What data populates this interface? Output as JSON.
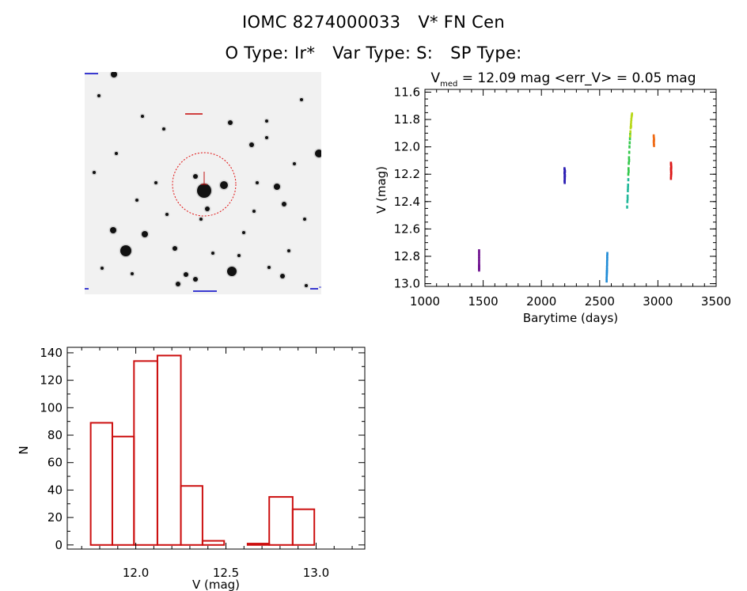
{
  "header": {
    "object_id": "IOMC 8274000033",
    "object_name": "V* FN Cen",
    "o_type": "O Type: Ir*",
    "var_type": "Var Type: S:",
    "sp_type": "SP Type:"
  },
  "chart_data": [
    {
      "type": "scatter",
      "title": "V_med = 12.09 mag <err_V> = 0.05 mag",
      "title_parts": {
        "v": "V",
        "sub": "med",
        "rest": " = 12.09 mag <err_V> = 0.05 mag"
      },
      "xlabel": "Barytime (days)",
      "ylabel": "V (mag)",
      "xlim": [
        1000,
        3500
      ],
      "ylim": [
        13.02,
        11.58
      ],
      "y_inverted": true,
      "xticks": [
        1000,
        1500,
        2000,
        2500,
        3000,
        3500
      ],
      "yticks": [
        11.6,
        11.8,
        12.0,
        12.2,
        12.4,
        12.6,
        12.8,
        13.0
      ],
      "yticklabels": [
        "11.6",
        "11.8",
        "12.0",
        "12.2",
        "12.4",
        "12.6",
        "12.8",
        "13.0"
      ],
      "grid": false,
      "series": [
        {
          "color": "#6a0a8c",
          "x": [
            1465,
            1465,
            1465,
            1465,
            1465,
            1465,
            1465,
            1465,
            1465,
            1465
          ],
          "y": [
            12.76,
            12.78,
            12.8,
            12.82,
            12.84,
            12.86,
            12.87,
            12.88,
            12.89,
            12.9
          ]
        },
        {
          "color": "#2d1fb3",
          "x": [
            2198,
            2200,
            2202,
            2198,
            2200,
            2202,
            2199,
            2201,
            2200,
            2199,
            2201,
            2200
          ],
          "y": [
            12.16,
            12.17,
            12.18,
            12.19,
            12.2,
            12.21,
            12.22,
            12.23,
            12.24,
            12.25,
            12.18,
            12.26
          ]
        },
        {
          "color": "#1f8bd6",
          "x": [
            2560,
            2560,
            2561,
            2561,
            2562,
            2562,
            2563,
            2563,
            2564,
            2564,
            2565,
            2565,
            2566
          ],
          "y": [
            12.98,
            12.96,
            12.94,
            12.93,
            12.92,
            12.91,
            12.9,
            12.88,
            12.86,
            12.84,
            12.82,
            12.8,
            12.78
          ]
        },
        {
          "color": "#22b89a",
          "x": [
            2736,
            2738,
            2740,
            2742,
            2744,
            2746,
            2740,
            2743
          ],
          "y": [
            12.44,
            12.4,
            12.36,
            12.32,
            12.28,
            12.24,
            12.38,
            12.3
          ]
        },
        {
          "color": "#32c84a",
          "x": [
            2746,
            2748,
            2750,
            2752,
            2754,
            2756,
            2758,
            2760,
            2762,
            2749,
            2753
          ],
          "y": [
            12.2,
            12.16,
            12.12,
            12.08,
            12.04,
            12.0,
            11.97,
            11.94,
            11.91,
            12.18,
            12.1
          ]
        },
        {
          "color": "#b8d81a",
          "x": [
            2762,
            2764,
            2766,
            2768,
            2770,
            2772,
            2774,
            2776,
            2778,
            2770
          ],
          "y": [
            11.92,
            11.89,
            11.86,
            11.84,
            11.82,
            11.8,
            11.78,
            11.77,
            11.76,
            11.85
          ]
        },
        {
          "color": "#ef6a15",
          "x": [
            2964,
            2965,
            2966,
            2967,
            2964,
            2966,
            2965,
            2967
          ],
          "y": [
            11.92,
            11.93,
            11.94,
            11.95,
            11.96,
            11.97,
            11.98,
            11.99
          ]
        },
        {
          "color": "#dc1616",
          "x": [
            3112,
            3113,
            3114,
            3115,
            3112,
            3114,
            3113,
            3115,
            3114,
            3113,
            3112
          ],
          "y": [
            12.12,
            12.13,
            12.14,
            12.15,
            12.16,
            12.17,
            12.18,
            12.19,
            12.2,
            12.21,
            12.23
          ]
        }
      ]
    },
    {
      "type": "histogram",
      "xlabel": "V (mag)",
      "ylabel": "N",
      "xlim": [
        11.62,
        13.27
      ],
      "ylim": [
        -3,
        144
      ],
      "xticks": [
        12.0,
        12.5,
        13.0
      ],
      "xticklabels": [
        "12.0",
        "12.5",
        "13.0"
      ],
      "yticks": [
        0,
        20,
        40,
        60,
        80,
        100,
        120,
        140
      ],
      "grid": false,
      "bar_color": "#cc1010",
      "bins": [
        {
          "x0": 11.75,
          "x1": 11.87,
          "count": 89
        },
        {
          "x0": 11.87,
          "x1": 11.99,
          "count": 79
        },
        {
          "x0": 11.99,
          "x1": 12.12,
          "count": 134
        },
        {
          "x0": 12.12,
          "x1": 12.25,
          "count": 138
        },
        {
          "x0": 12.25,
          "x1": 12.37,
          "count": 43
        },
        {
          "x0": 12.37,
          "x1": 12.49,
          "count": 3
        },
        {
          "x0": 12.49,
          "x1": 12.62,
          "count": 0
        },
        {
          "x0": 12.62,
          "x1": 12.74,
          "count": 1
        },
        {
          "x0": 12.74,
          "x1": 12.87,
          "count": 35
        },
        {
          "x0": 12.87,
          "x1": 12.99,
          "count": 26
        }
      ]
    }
  ]
}
